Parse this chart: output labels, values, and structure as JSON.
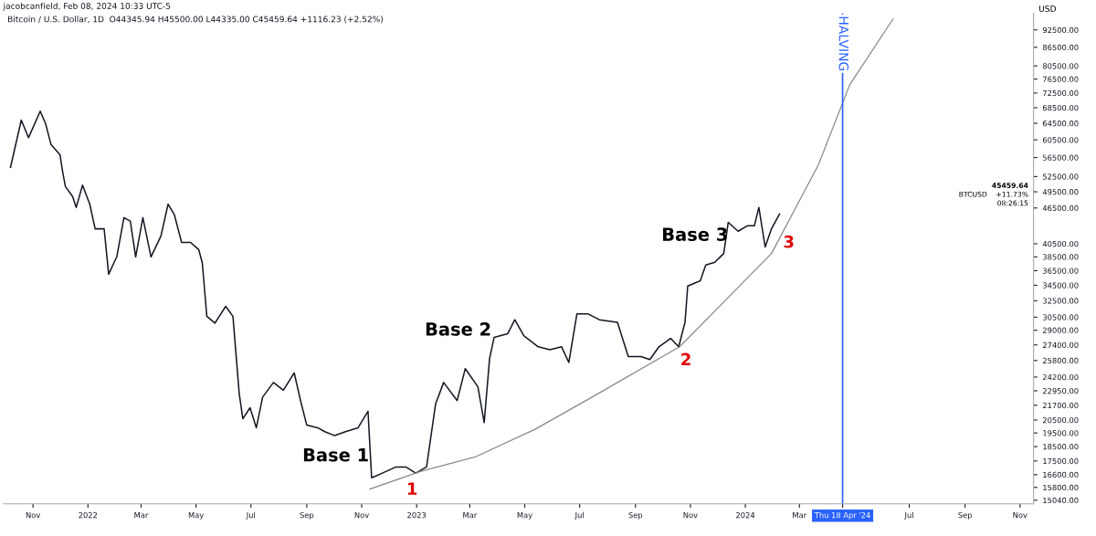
{
  "chart_data": {
    "type": "line",
    "title": "Bitcoin / U.S. Dollar, 1D  O44345.94 H45500.00 L44335.00 C45459.64 +1116.23 (+2.52%)",
    "subtitle": "jacobcanfield, Feb 08, 2024 10:33 UTC-5",
    "ylabel": "USD",
    "log": "y",
    "ylim": [
      14830,
      98600
    ],
    "yticks": [
      {
        "value": 15040,
        "label": "15040.00"
      },
      {
        "value": 15800,
        "label": "15800.00"
      },
      {
        "value": 16600,
        "label": "16600.00"
      },
      {
        "value": 17500,
        "label": "17500.00"
      },
      {
        "value": 18500,
        "label": "18500.00"
      },
      {
        "value": 19500,
        "label": "19500.00"
      },
      {
        "value": 20500,
        "label": "20500.00"
      },
      {
        "value": 21700,
        "label": "21700.00"
      },
      {
        "value": 22950,
        "label": "22950.00"
      },
      {
        "value": 24200,
        "label": "24200.00"
      },
      {
        "value": 25800,
        "label": "25800.00"
      },
      {
        "value": 27400,
        "label": "27400.00"
      },
      {
        "value": 29000,
        "label": "29000.00"
      },
      {
        "value": 30500,
        "label": "30500.00"
      },
      {
        "value": 32500,
        "label": "32500.00"
      },
      {
        "value": 34500,
        "label": "34500.00"
      },
      {
        "value": 36500,
        "label": "36500.00"
      },
      {
        "value": 38500,
        "label": "38500.00"
      },
      {
        "value": 40500,
        "label": "40500.00"
      },
      {
        "value": 46500,
        "label": "46500.00"
      },
      {
        "value": 49500,
        "label": "49500.00"
      },
      {
        "value": 52500,
        "label": "52500.00"
      },
      {
        "value": 56500,
        "label": "56500.00"
      },
      {
        "value": 60500,
        "label": "60500.00"
      },
      {
        "value": 64500,
        "label": "64500.00"
      },
      {
        "value": 68500,
        "label": "68500.00"
      },
      {
        "value": 72500,
        "label": "72500.00"
      },
      {
        "value": 76500,
        "label": "76500.00"
      },
      {
        "value": 80500,
        "label": "80500.00"
      },
      {
        "value": 86500,
        "label": "86500.00"
      },
      {
        "value": 92500,
        "label": "92500.00"
      }
    ],
    "xlim": [
      "2021-09-29",
      "2024-11-16"
    ],
    "xticks": [
      {
        "value": "2021-11-01",
        "label": "Nov"
      },
      {
        "value": "2022-01-01",
        "label": "2022"
      },
      {
        "value": "2022-03-01",
        "label": "Mar"
      },
      {
        "value": "2022-05-01",
        "label": "May"
      },
      {
        "value": "2022-07-01",
        "label": "Jul"
      },
      {
        "value": "2022-09-01",
        "label": "Sep"
      },
      {
        "value": "2022-11-01",
        "label": "Nov"
      },
      {
        "value": "2023-01-01",
        "label": "2023"
      },
      {
        "value": "2023-03-01",
        "label": "Mar"
      },
      {
        "value": "2023-05-01",
        "label": "May"
      },
      {
        "value": "2023-07-01",
        "label": "Jul"
      },
      {
        "value": "2023-09-01",
        "label": "Sep"
      },
      {
        "value": "2023-11-01",
        "label": "Nov"
      },
      {
        "value": "2024-01-01",
        "label": "2024"
      },
      {
        "value": "2024-03-01",
        "label": "Mar"
      },
      {
        "value": "2024-04-18",
        "label": "Thu 18 Apr '24"
      },
      {
        "value": "2024-07-01",
        "label": "Jul"
      },
      {
        "value": "2024-09-01",
        "label": "Sep"
      },
      {
        "value": "2024-11-01",
        "label": "Nov"
      }
    ],
    "grid": false,
    "legend": false,
    "marker": "none",
    "series": [
      {
        "color": "#131722",
        "line_style": "solid",
        "x": [
          "2021-10-07",
          "2021-10-19",
          "2021-10-27",
          "2021-11-09",
          "2021-11-15",
          "2021-11-21",
          "2021-12-01",
          "2021-12-04",
          "2021-12-07",
          "2021-12-15",
          "2021-12-19",
          "2021-12-26",
          "2022-01-03",
          "2022-01-09",
          "2022-01-19",
          "2022-01-24",
          "2022-02-02",
          "2022-02-10",
          "2022-02-17",
          "2022-02-23",
          "2022-03-03",
          "2022-03-12",
          "2022-03-23",
          "2022-03-31",
          "2022-04-07",
          "2022-04-15",
          "2022-04-25",
          "2022-05-04",
          "2022-05-08",
          "2022-05-13",
          "2022-05-22",
          "2022-06-03",
          "2022-06-11",
          "2022-06-18",
          "2022-06-22",
          "2022-06-30",
          "2022-07-07",
          "2022-07-14",
          "2022-07-26",
          "2022-08-06",
          "2022-08-18",
          "2022-08-26",
          "2022-09-01",
          "2022-09-13",
          "2022-09-21",
          "2022-10-02",
          "2022-10-14",
          "2022-10-28",
          "2022-11-08",
          "2022-11-12",
          "2022-11-24",
          "2022-12-09",
          "2022-12-20",
          "2022-12-31",
          "2023-01-12",
          "2023-01-22",
          "2023-01-31",
          "2023-02-15",
          "2023-02-24",
          "2023-03-10",
          "2023-03-17",
          "2023-03-23",
          "2023-03-28",
          "2023-04-12",
          "2023-04-20",
          "2023-04-30",
          "2023-05-16",
          "2023-05-29",
          "2023-06-11",
          "2023-06-19",
          "2023-06-28",
          "2023-07-10",
          "2023-07-23",
          "2023-08-12",
          "2023-08-24",
          "2023-09-07",
          "2023-09-17",
          "2023-09-27",
          "2023-10-10",
          "2023-10-19",
          "2023-10-26",
          "2023-10-29",
          "2023-11-12",
          "2023-11-18",
          "2023-11-28",
          "2023-12-08",
          "2023-12-13",
          "2023-12-24",
          "2024-01-03",
          "2024-01-11",
          "2024-01-16",
          "2024-01-23",
          "2024-01-30",
          "2024-02-08"
        ],
        "values": [
          54400,
          65300,
          61000,
          67600,
          64400,
          59400,
          57100,
          53400,
          50500,
          48600,
          46600,
          50800,
          47200,
          42900,
          42900,
          36000,
          38500,
          44800,
          44200,
          38500,
          44800,
          38500,
          41700,
          47200,
          45300,
          40700,
          40700,
          39600,
          37600,
          30600,
          29800,
          31800,
          30600,
          22700,
          20600,
          21500,
          19900,
          22400,
          23700,
          23000,
          24600,
          21800,
          20100,
          19900,
          19600,
          19300,
          19600,
          19900,
          21200,
          16400,
          16700,
          17100,
          17100,
          16700,
          17100,
          21800,
          23700,
          22100,
          25000,
          23300,
          20300,
          26000,
          28200,
          28600,
          30200,
          28400,
          27200,
          26900,
          27200,
          25600,
          30900,
          30900,
          30200,
          29900,
          26200,
          26200,
          25900,
          27200,
          28100,
          27200,
          29900,
          34400,
          35100,
          37300,
          37700,
          39000,
          44000,
          42500,
          43400,
          43400,
          46600,
          40000,
          42900,
          45459.64
        ]
      },
      {
        "color": "#888888",
        "line_style": "solid",
        "x": [
          "2022-11-10",
          "2023-01-05",
          "2023-03-08",
          "2023-05-13",
          "2023-07-17",
          "2023-10-20",
          "2024-01-30",
          "2024-03-22",
          "2024-04-26",
          "2024-06-13"
        ],
        "values": [
          15700,
          16800,
          17800,
          19800,
          22500,
          27200,
          39000,
          54900,
          74900,
          96500
        ]
      }
    ],
    "ref_lines": [
      {
        "axis": "x",
        "value": "2024-04-18",
        "label": "HALVING",
        "color": "#2962ff"
      }
    ],
    "annotations": [
      "Base 1",
      "Base 2",
      "Base 3",
      "1",
      "2",
      "3",
      "BTCUSD",
      "45459.64",
      "+11.73%",
      "08:26:15"
    ]
  }
}
